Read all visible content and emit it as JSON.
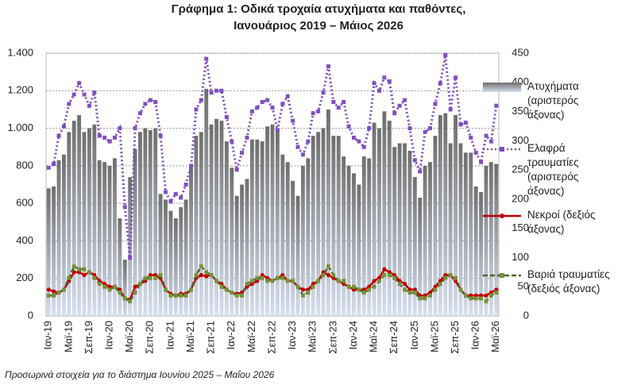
{
  "chart_data": {
    "type": "bar-line",
    "title": "Γράφημα 1: Οδικά τροχαία ατυχήματα και παθόντες,",
    "subtitle": "Ιανουάριος 2019 – Μάιος 2026",
    "note": "Προσωρινά στοιχεία για το διάστημα Ιουνίου 2025 – Μαΐου 2026",
    "categories": [
      "Ιαν-19",
      null,
      null,
      null,
      "Μαϊ-19",
      null,
      null,
      null,
      "Σεπ-19",
      null,
      null,
      null,
      "Ιαν-20",
      null,
      null,
      null,
      "Μαϊ-20",
      null,
      null,
      null,
      "Σεπ-20",
      null,
      null,
      null,
      "Ιαν-21",
      null,
      null,
      null,
      "Μαϊ-21",
      null,
      null,
      null,
      "Σεπ-21",
      null,
      null,
      null,
      "Ιαν-22",
      null,
      null,
      null,
      "Μαϊ-22",
      null,
      null,
      null,
      "Σεπ-22",
      null,
      null,
      null,
      "Ιαν-23",
      null,
      null,
      null,
      "Μαϊ-23",
      null,
      null,
      null,
      "Σεπ-23",
      null,
      null,
      null,
      "Ιαν-24",
      null,
      null,
      null,
      "Μαϊ-24",
      null,
      null,
      null,
      "Σεπ-24",
      null,
      null,
      null,
      "Ιαν-25",
      null,
      null,
      null,
      "Μαϊ-25",
      null,
      null,
      null,
      "Σεπ-25",
      null,
      null,
      null,
      "Ιαν-26",
      null,
      null,
      null,
      "Μαϊ-26"
    ],
    "ylim": [
      0,
      1400
    ],
    "yticks": [
      0,
      200,
      400,
      600,
      800,
      {
        "value": 1000,
        "label": "1.000"
      },
      {
        "value": 1200,
        "label": "1.200"
      },
      {
        "value": 1400,
        "label": "1.400"
      }
    ],
    "y2lim": [
      0,
      450
    ],
    "y2ticks": [
      0,
      50,
      100,
      150,
      200,
      250,
      300,
      350,
      400,
      450
    ],
    "grid": true,
    "series": [
      {
        "name": "Ατυχήματα (αριστερός άξονας)",
        "type": "bar",
        "color": "#8c8c8c",
        "values": [
          680,
          690,
          830,
          860,
          980,
          1040,
          1070,
          980,
          1000,
          1020,
          830,
          820,
          800,
          840,
          520,
          300,
          740,
          890,
          980,
          1000,
          990,
          1000,
          650,
          620,
          560,
          520,
          580,
          620,
          800,
          960,
          980,
          1210,
          1020,
          1050,
          1040,
          930,
          790,
          640,
          700,
          730,
          940,
          940,
          930,
          1010,
          1020,
          980,
          860,
          820,
          720,
          640,
          800,
          840,
          960,
          980,
          1000,
          1100,
          960,
          960,
          850,
          800,
          760,
          700,
          850,
          840,
          1030,
          1000,
          1090,
          1040,
          900,
          920,
          920,
          880,
          740,
          630,
          800,
          820,
          960,
          1070,
          1080,
          920,
          1070,
          920,
          870,
          870,
          690,
          660,
          800,
          820,
          810
        ]
      },
      {
        "name": "Ελαφρά τραυματίες (αριστερός άξονας)",
        "type": "line",
        "color": "#7f4fc0",
        "values": [
          790,
          810,
          960,
          1010,
          1130,
          1180,
          1240,
          1180,
          1120,
          1190,
          960,
          950,
          930,
          950,
          1000,
          580,
          310,
          1000,
          1080,
          1130,
          1150,
          1140,
          960,
          660,
          610,
          650,
          630,
          700,
          800,
          1100,
          1150,
          1370,
          1190,
          1200,
          1200,
          1060,
          930,
          780,
          870,
          950,
          1090,
          1110,
          1140,
          1150,
          1110,
          990,
          1130,
          1170,
          1040,
          900,
          860,
          930,
          1080,
          1090,
          1190,
          1330,
          1140,
          1110,
          1140,
          1010,
          950,
          930,
          900,
          1000,
          1240,
          1200,
          1270,
          1250,
          1080,
          1120,
          1150,
          1000,
          830,
          770,
          980,
          1000,
          1130,
          1240,
          1390,
          1100,
          1270,
          1020,
          1030,
          950,
          870,
          820,
          960,
          930,
          1120
        ]
      },
      {
        "name": "Νεκροί (δεξιός άξονας)",
        "type": "line",
        "axis": "y2",
        "color": "#c00000",
        "values": [
          45,
          42,
          40,
          45,
          60,
          75,
          75,
          70,
          75,
          70,
          60,
          55,
          50,
          50,
          45,
          30,
          28,
          50,
          55,
          60,
          70,
          70,
          65,
          45,
          38,
          35,
          38,
          38,
          45,
          65,
          70,
          68,
          70,
          60,
          55,
          45,
          40,
          38,
          40,
          50,
          55,
          60,
          70,
          65,
          60,
          65,
          70,
          60,
          60,
          50,
          45,
          45,
          55,
          60,
          75,
          70,
          65,
          60,
          55,
          50,
          45,
          45,
          45,
          50,
          60,
          65,
          80,
          75,
          70,
          60,
          55,
          45,
          45,
          35,
          35,
          40,
          50,
          60,
          70,
          70,
          60,
          45,
          35,
          35,
          35,
          35,
          35,
          40,
          45
        ]
      },
      {
        "name": "Βαριά τραυματίες (δεξιός άξονας)",
        "type": "line",
        "axis": "y2",
        "color": "#4f6228",
        "values": [
          35,
          35,
          40,
          45,
          65,
          85,
          80,
          80,
          75,
          65,
          55,
          50,
          45,
          50,
          40,
          30,
          25,
          40,
          55,
          65,
          65,
          65,
          70,
          45,
          35,
          35,
          35,
          35,
          45,
          70,
          85,
          75,
          70,
          60,
          50,
          45,
          40,
          35,
          35,
          55,
          60,
          65,
          65,
          60,
          60,
          65,
          65,
          60,
          60,
          50,
          35,
          40,
          50,
          60,
          70,
          85,
          70,
          60,
          60,
          50,
          50,
          45,
          40,
          45,
          50,
          60,
          70,
          70,
          65,
          55,
          45,
          40,
          40,
          30,
          30,
          35,
          45,
          55,
          65,
          70,
          65,
          45,
          35,
          30,
          30,
          30,
          25,
          35,
          40
        ]
      }
    ]
  }
}
